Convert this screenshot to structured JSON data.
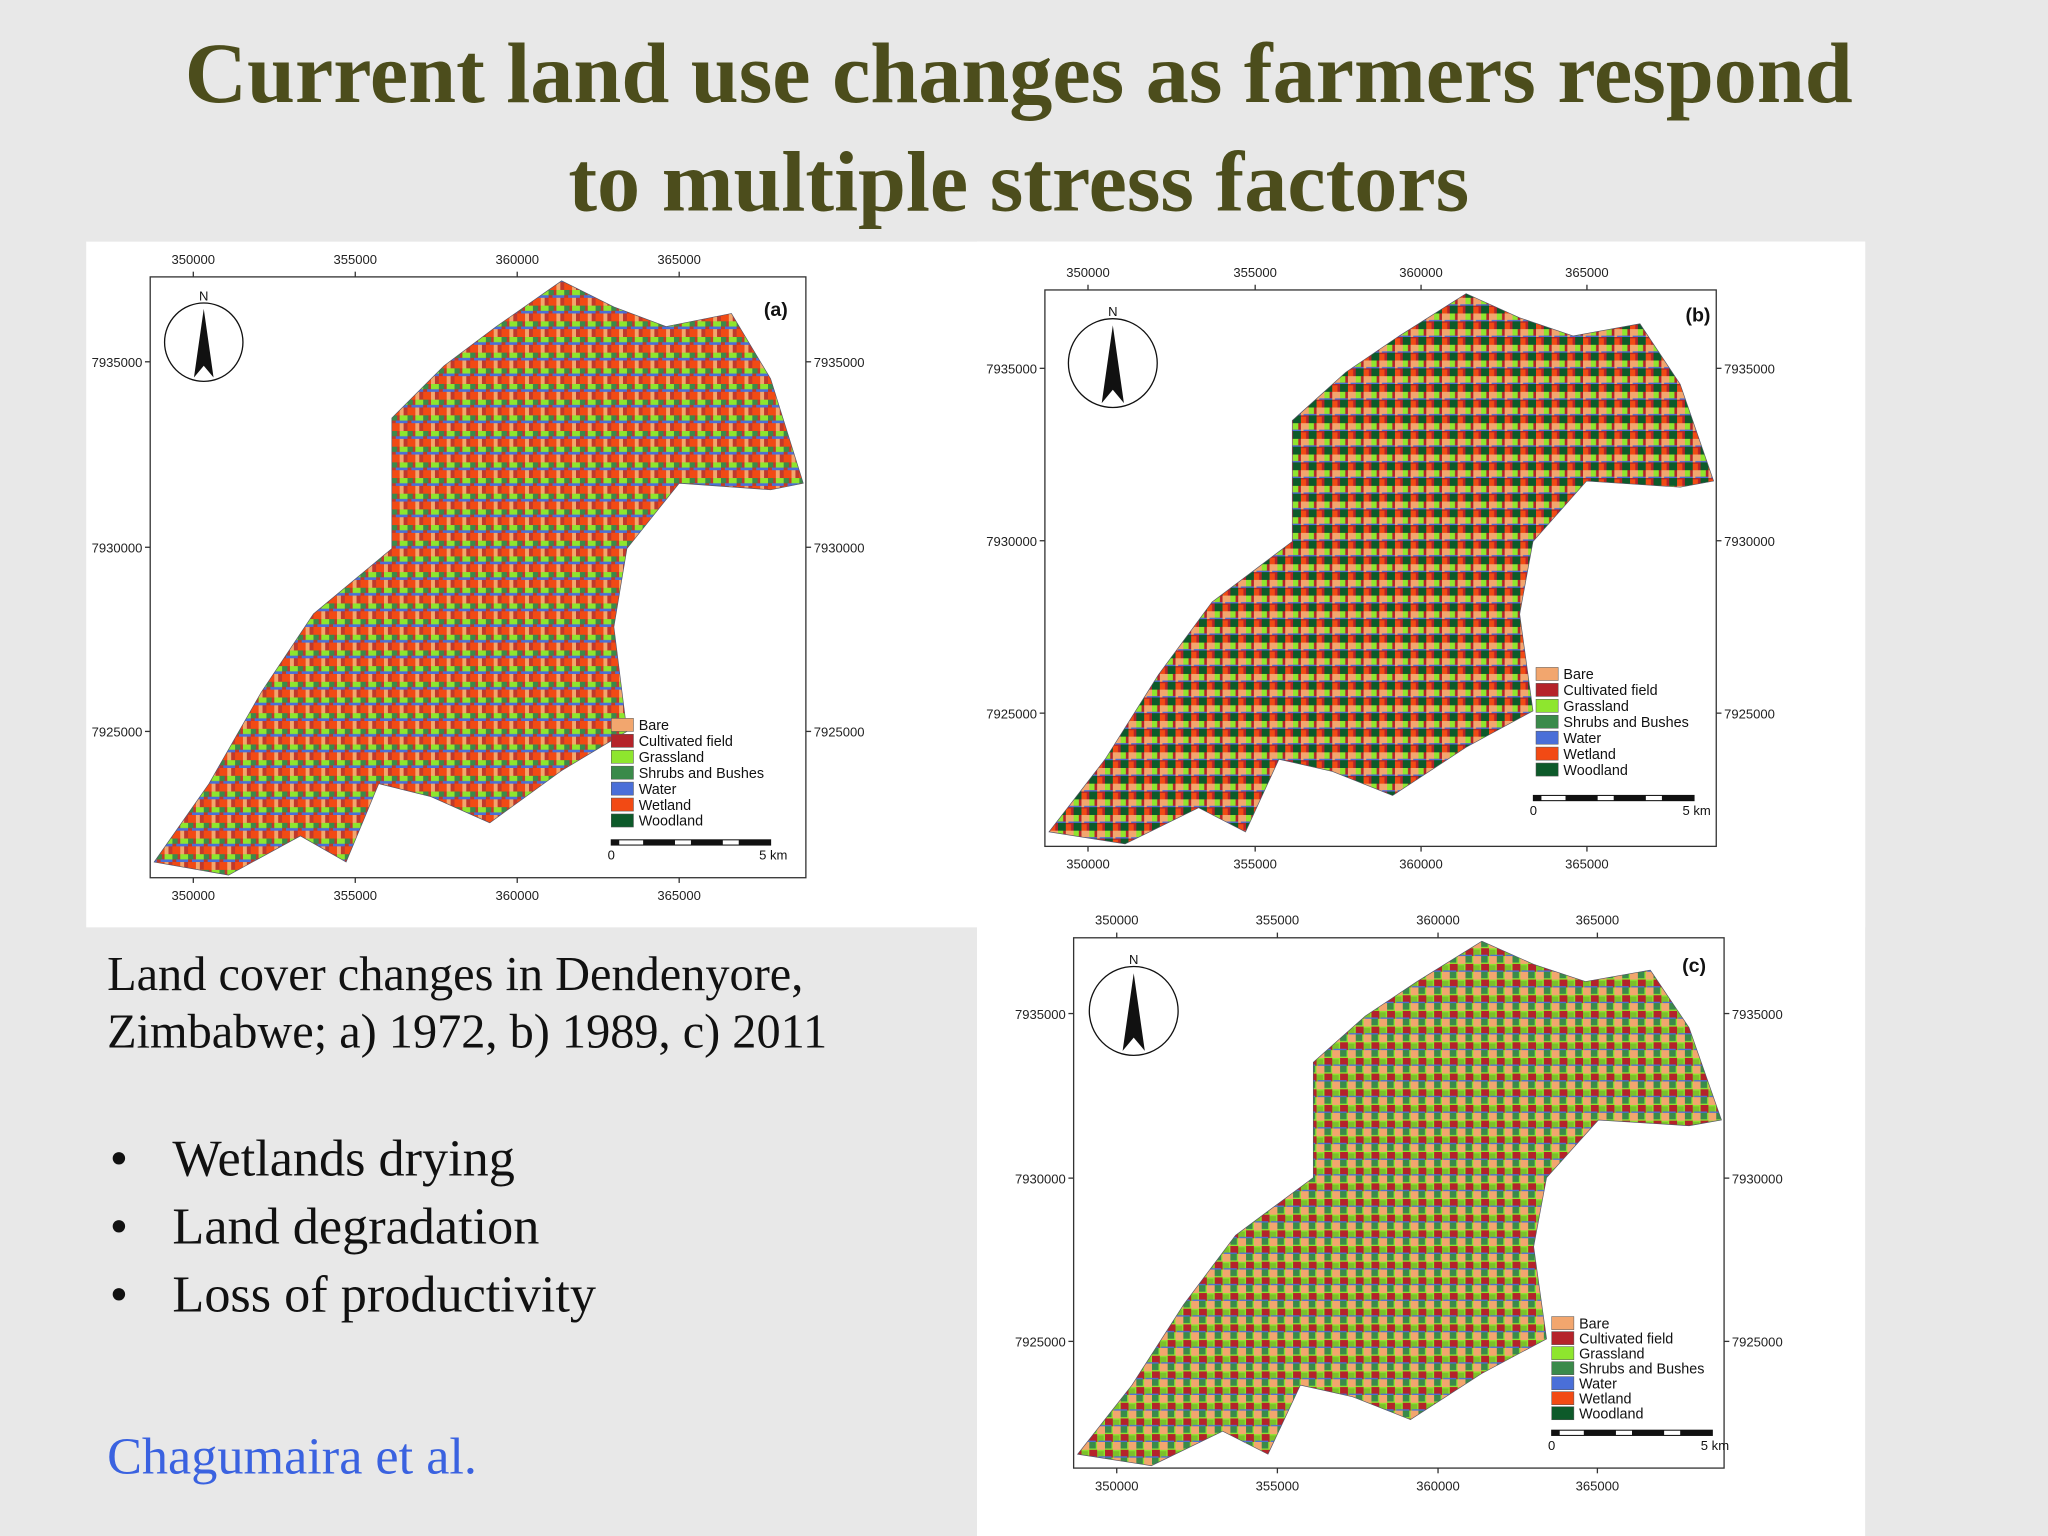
{
  "title": [
    "Current land use changes as farmers respond",
    "to multiple stress factors"
  ],
  "maps": [
    {
      "label": "(a)",
      "north": "N",
      "x_ticks": [
        "350000",
        "355000",
        "360000",
        "365000"
      ],
      "y_ticks": [
        "7935000",
        "7930000",
        "7925000"
      ],
      "legend": [
        {
          "name": "Bare",
          "color": "#f2a66e"
        },
        {
          "name": "Cultivated field",
          "color": "#b5232a"
        },
        {
          "name": "Grassland",
          "color": "#8ee62e"
        },
        {
          "name": "Shrubs and Bushes",
          "color": "#3a8a4a"
        },
        {
          "name": "Water",
          "color": "#4a6fd8"
        },
        {
          "name": "Wetland",
          "color": "#f24a14"
        },
        {
          "name": "Woodland",
          "color": "#0d5a2a"
        }
      ],
      "scale": [
        "0",
        "5 km"
      ]
    },
    {
      "label": "(b)",
      "north": "N",
      "x_ticks": [
        "350000",
        "355000",
        "360000",
        "365000"
      ],
      "y_ticks": [
        "7935000",
        "7930000",
        "7925000"
      ],
      "legend": [
        {
          "name": "Bare",
          "color": "#f2a66e"
        },
        {
          "name": "Cultivated field",
          "color": "#b5232a"
        },
        {
          "name": "Grassland",
          "color": "#8ee62e"
        },
        {
          "name": "Shrubs and Bushes",
          "color": "#3a8a4a"
        },
        {
          "name": "Water",
          "color": "#4a6fd8"
        },
        {
          "name": "Wetland",
          "color": "#f24a14"
        },
        {
          "name": "Woodland",
          "color": "#0d5a2a"
        }
      ],
      "scale": [
        "0",
        "5 km"
      ]
    },
    {
      "label": "(c)",
      "north": "N",
      "x_ticks": [
        "350000",
        "355000",
        "360000",
        "365000"
      ],
      "y_ticks": [
        "7935000",
        "7930000",
        "7925000"
      ],
      "legend": [
        {
          "name": "Bare",
          "color": "#f2a66e"
        },
        {
          "name": "Cultivated field",
          "color": "#b5232a"
        },
        {
          "name": "Grassland",
          "color": "#8ee62e"
        },
        {
          "name": "Shrubs and Bushes",
          "color": "#3a8a4a"
        },
        {
          "name": "Water",
          "color": "#4a6fd8"
        },
        {
          "name": "Wetland",
          "color": "#f24a14"
        },
        {
          "name": "Woodland",
          "color": "#0d5a2a"
        }
      ],
      "scale": [
        "0",
        "5 km"
      ]
    }
  ],
  "caption": [
    "Land cover changes in Dendenyore,",
    "Zimbabwe; a) 1972, b) 1989, c) 2011"
  ],
  "bullets": [
    "Wetlands drying",
    "Land degradation",
    "Loss of productivity"
  ],
  "citation": "Chagumaira et al."
}
